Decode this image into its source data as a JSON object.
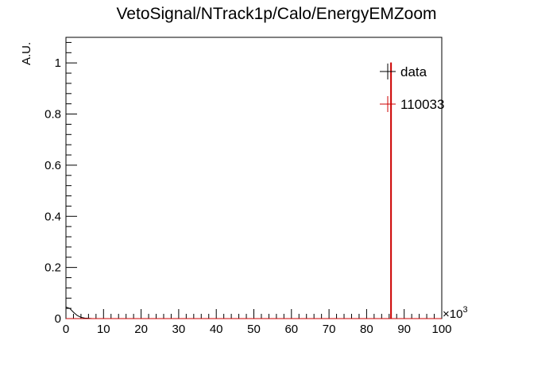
{
  "chart_data": {
    "type": "line",
    "title": "VetoSignal/NTrack1p/Calo/EnergyEMZoom",
    "xlabel": "",
    "ylabel": "A.U.",
    "x_exponent_label": "×10",
    "x_exponent_power": "3",
    "xlim": [
      0,
      100
    ],
    "ylim": [
      0,
      1.1
    ],
    "x_major_ticks": [
      0,
      10,
      20,
      30,
      40,
      50,
      60,
      70,
      80,
      90,
      100
    ],
    "x_tick_labels": [
      "0",
      "10",
      "20",
      "30",
      "40",
      "50",
      "60",
      "70",
      "80",
      "90",
      "100"
    ],
    "y_major_ticks": [
      0,
      0.2,
      0.4,
      0.6,
      0.8,
      1.0
    ],
    "y_tick_labels": [
      "0",
      "0.2",
      "0.4",
      "0.6",
      "0.8",
      "1"
    ],
    "grid": false,
    "legend_position": "top-right",
    "series": [
      {
        "name": "data",
        "color": "#000000",
        "x": [
          0,
          1,
          2,
          3,
          4,
          5,
          6,
          7,
          8,
          10,
          20,
          40,
          60,
          80,
          100
        ],
        "y": [
          0.045,
          0.04,
          0.025,
          0.012,
          0.005,
          0.002,
          0.001,
          0.0,
          0.0,
          0.0,
          0.0,
          0.0,
          0.0,
          0.0,
          0.0
        ]
      },
      {
        "name": "110033",
        "color": "#cc0000",
        "x": [
          0,
          86,
          86.5,
          100
        ],
        "y": [
          0.0,
          0.0,
          1.0,
          0.0
        ],
        "spike": {
          "x": 86.5,
          "y": 1.0
        }
      }
    ]
  }
}
